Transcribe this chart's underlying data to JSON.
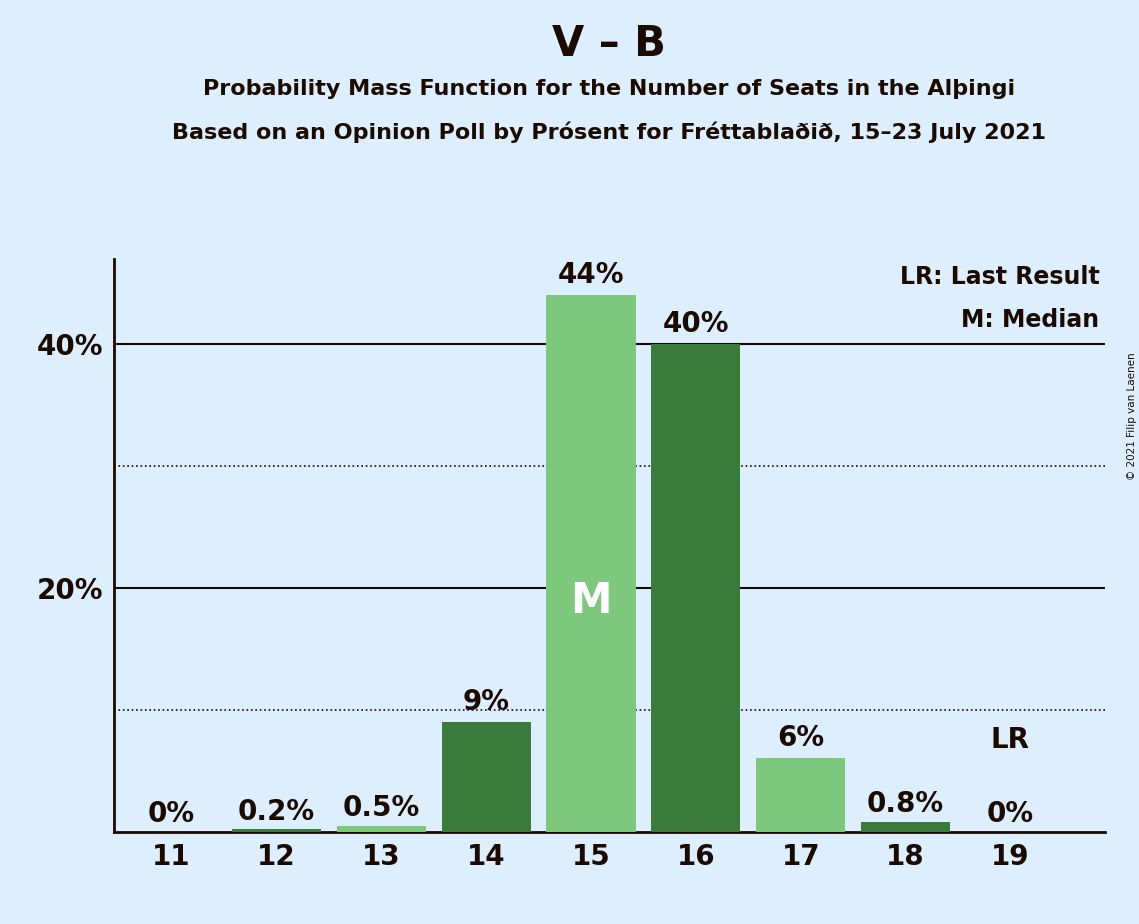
{
  "title": "V – B",
  "subtitle1": "Probability Mass Function for the Number of Seats in the Alþingi",
  "subtitle2": "Based on an Opinion Poll by Prósent for Fréttablaðið, 15–23 July 2021",
  "copyright": "© 2021 Filip van Laenen",
  "seats": [
    11,
    12,
    13,
    14,
    15,
    16,
    17,
    18,
    19
  ],
  "values": [
    0.0,
    0.2,
    0.5,
    9.0,
    44.0,
    40.0,
    6.0,
    0.8,
    0.0
  ],
  "bar_colors": [
    "#3a7a3a",
    "#3a7a3a",
    "#7dc87d",
    "#3a7a3a",
    "#7dc87d",
    "#3a7a3a",
    "#7dc87d",
    "#3a7a3a",
    "#3a7a3a"
  ],
  "median_seat": 15,
  "lr_seat": 19,
  "lr_label": "LR",
  "median_label": "M",
  "value_labels": [
    "0%",
    "0.2%",
    "0.5%",
    "9%",
    "44%",
    "40%",
    "6%",
    "0.8%",
    "0%"
  ],
  "legend_lr": "LR: Last Result",
  "legend_m": "M: Median",
  "ylim": [
    0,
    47
  ],
  "background_color": "#ddeeff",
  "title_fontsize": 30,
  "subtitle_fontsize": 16,
  "bar_label_fontsize": 20,
  "axis_tick_fontsize": 20,
  "legend_fontsize": 17,
  "median_text_color": "#ffffff",
  "solid_grid_vals": [
    20,
    40
  ],
  "dotted_grid_vals": [
    10,
    30
  ],
  "spine_color": "#1a0a00",
  "text_color": "#1a0a00"
}
